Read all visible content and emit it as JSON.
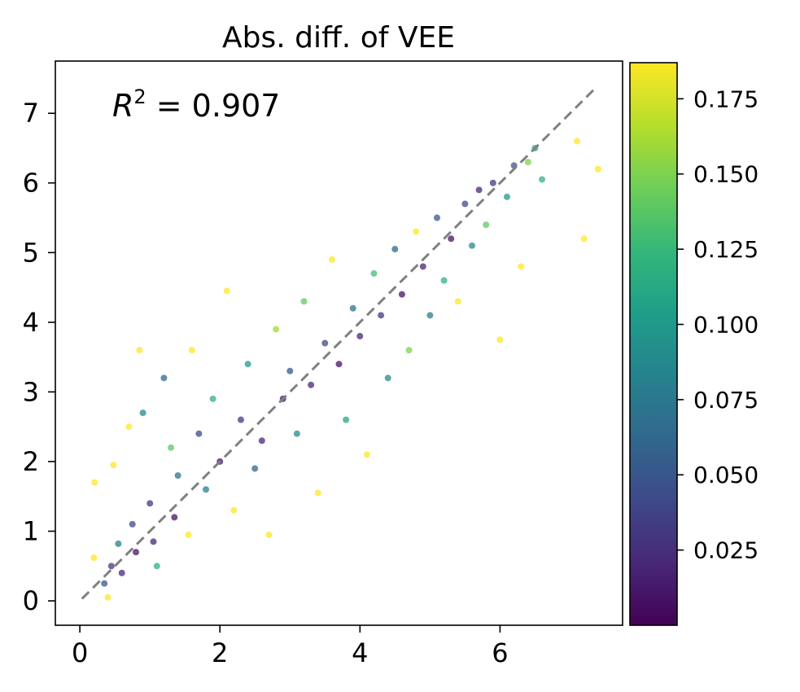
{
  "chart_data": {
    "type": "scatter",
    "title": "Abs. diff. of VEE",
    "xlabel": "",
    "ylabel": "",
    "xlim": [
      -0.35,
      7.75
    ],
    "ylim": [
      -0.35,
      7.75
    ],
    "x_ticks": [
      0,
      2,
      4,
      6
    ],
    "y_ticks": [
      0,
      1,
      2,
      3,
      4,
      5,
      6,
      7
    ],
    "annotation": {
      "prefix": "R",
      "superscript": "2",
      "text": " = 0.907",
      "r2": 0.907
    },
    "reference_line": {
      "from": [
        0.03,
        0.03
      ],
      "to": [
        7.38,
        7.38
      ],
      "style": "dashed",
      "color": "#808080"
    },
    "colorbar": {
      "min": 0.0,
      "max": 0.187,
      "ticks": [
        0.025,
        0.05,
        0.075,
        0.1,
        0.125,
        0.15,
        0.175
      ],
      "tick_labels": [
        "0.025",
        "0.050",
        "0.075",
        "0.100",
        "0.125",
        "0.150",
        "0.175"
      ],
      "colormap": "viridis",
      "colors": [
        "#440154",
        "#482878",
        "#3e4989",
        "#31688e",
        "#26828e",
        "#1f9e89",
        "#35b779",
        "#6ece58",
        "#b5de2b",
        "#fde725"
      ]
    },
    "grid": false,
    "points": [
      [
        0.2,
        0.62,
        0.19
      ],
      [
        0.21,
        1.7,
        0.19
      ],
      [
        0.35,
        0.25,
        0.05
      ],
      [
        0.4,
        0.05,
        0.19
      ],
      [
        0.45,
        0.5,
        0.03
      ],
      [
        0.48,
        1.95,
        0.19
      ],
      [
        0.55,
        0.82,
        0.08
      ],
      [
        0.6,
        0.4,
        0.02
      ],
      [
        0.7,
        2.5,
        0.19
      ],
      [
        0.75,
        1.1,
        0.04
      ],
      [
        0.8,
        0.7,
        0.01
      ],
      [
        0.85,
        3.6,
        0.19
      ],
      [
        0.9,
        2.7,
        0.09
      ],
      [
        1.0,
        1.4,
        0.03
      ],
      [
        1.05,
        0.85,
        0.02
      ],
      [
        1.1,
        0.5,
        0.12
      ],
      [
        1.2,
        3.2,
        0.06
      ],
      [
        1.3,
        2.2,
        0.14
      ],
      [
        1.35,
        1.2,
        0.01
      ],
      [
        1.4,
        1.8,
        0.07
      ],
      [
        1.55,
        0.95,
        0.19
      ],
      [
        1.6,
        3.6,
        0.19
      ],
      [
        1.7,
        2.4,
        0.04
      ],
      [
        1.8,
        1.6,
        0.08
      ],
      [
        1.9,
        2.9,
        0.12
      ],
      [
        2.0,
        2.0,
        0.01
      ],
      [
        2.1,
        4.45,
        0.19
      ],
      [
        2.2,
        1.3,
        0.19
      ],
      [
        2.3,
        2.6,
        0.03
      ],
      [
        2.4,
        3.4,
        0.1
      ],
      [
        2.5,
        1.9,
        0.06
      ],
      [
        2.6,
        2.3,
        0.02
      ],
      [
        2.7,
        0.95,
        0.19
      ],
      [
        2.8,
        3.9,
        0.16
      ],
      [
        2.9,
        2.9,
        0.01
      ],
      [
        3.0,
        3.3,
        0.05
      ],
      [
        3.1,
        2.4,
        0.09
      ],
      [
        3.2,
        4.3,
        0.14
      ],
      [
        3.3,
        3.1,
        0.02
      ],
      [
        3.4,
        1.55,
        0.19
      ],
      [
        3.5,
        3.7,
        0.04
      ],
      [
        3.6,
        4.9,
        0.19
      ],
      [
        3.7,
        3.4,
        0.01
      ],
      [
        3.8,
        2.6,
        0.11
      ],
      [
        3.9,
        4.2,
        0.07
      ],
      [
        4.0,
        3.8,
        0.02
      ],
      [
        4.1,
        2.1,
        0.19
      ],
      [
        4.2,
        4.7,
        0.13
      ],
      [
        4.3,
        4.1,
        0.03
      ],
      [
        4.4,
        3.2,
        0.09
      ],
      [
        4.5,
        5.05,
        0.06
      ],
      [
        4.6,
        4.4,
        0.01
      ],
      [
        4.7,
        3.6,
        0.15
      ],
      [
        4.8,
        5.3,
        0.19
      ],
      [
        4.9,
        4.8,
        0.02
      ],
      [
        5.0,
        4.1,
        0.08
      ],
      [
        5.1,
        5.5,
        0.05
      ],
      [
        5.2,
        4.6,
        0.12
      ],
      [
        5.3,
        5.2,
        0.01
      ],
      [
        5.4,
        4.3,
        0.19
      ],
      [
        5.5,
        5.7,
        0.04
      ],
      [
        5.6,
        5.1,
        0.09
      ],
      [
        5.7,
        5.9,
        0.02
      ],
      [
        5.8,
        5.4,
        0.14
      ],
      [
        5.9,
        6.0,
        0.03
      ],
      [
        6.0,
        3.75,
        0.19
      ],
      [
        6.1,
        5.8,
        0.1
      ],
      [
        6.2,
        6.25,
        0.05
      ],
      [
        6.3,
        4.8,
        0.19
      ],
      [
        6.4,
        6.3,
        0.15
      ],
      [
        6.5,
        6.5,
        0.11
      ],
      [
        6.6,
        6.05,
        0.12
      ],
      [
        7.1,
        6.6,
        0.19
      ],
      [
        7.2,
        5.2,
        0.19
      ],
      [
        7.4,
        6.2,
        0.19
      ]
    ]
  }
}
